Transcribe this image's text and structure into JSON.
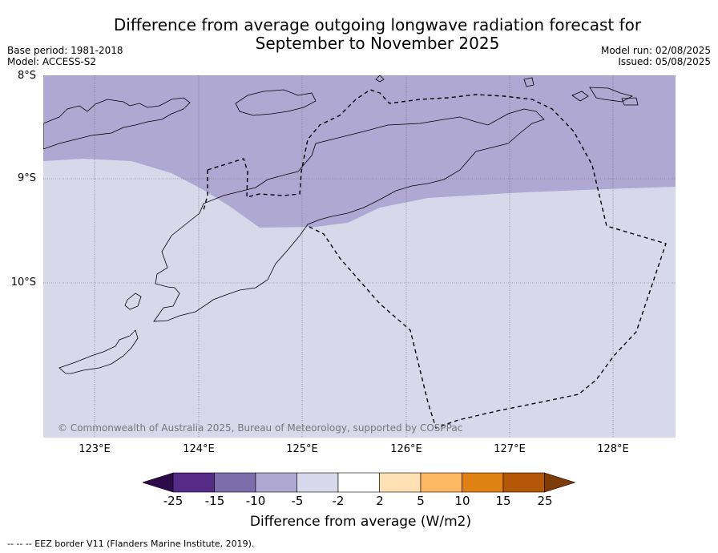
{
  "title_line1": "Difference from average outgoing longwave radiation forecast for",
  "title_line2": "September to November 2025",
  "meta": {
    "base_period": "Base period: 1981-2018",
    "model": "Model: ACCESS-S2",
    "model_run": "Model run: 02/08/2025",
    "issued": "Issued: 05/08/2025"
  },
  "axes": {
    "lat_labels": [
      "8°S",
      "9°S",
      "10°S"
    ],
    "lon_labels": [
      "123°E",
      "124°E",
      "125°E",
      "126°E",
      "127°E",
      "128°E"
    ]
  },
  "copyright": "© Commonwealth of Australia 2025, Bureau of Meteorology, supported by COSPPac",
  "colorbar": {
    "title": "Difference from average (W/m2)",
    "ticks": [
      "-25",
      "-15",
      "-10",
      "-5",
      "-2",
      "2",
      "5",
      "10",
      "15",
      "25"
    ],
    "colors": [
      "#2d0b4b",
      "#562a87",
      "#7d6dab",
      "#aea8d2",
      "#d7d8ea",
      "#ffffff",
      "#fde0b4",
      "#fdb863",
      "#e08114",
      "#b35806",
      "#7f3b08"
    ]
  },
  "footnote": "--  --  -- EEZ border V11 (Flanders Marine Institute, 2019)."
}
